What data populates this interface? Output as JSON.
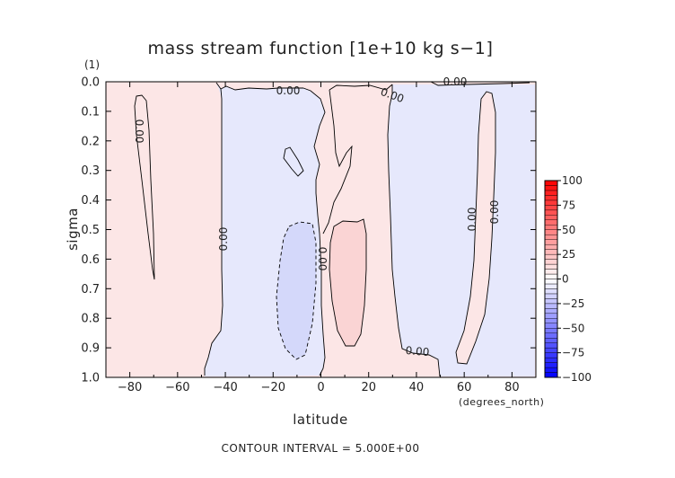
{
  "chart_data": {
    "type": "heatmap",
    "title": "mass stream function [1e+10 kg s−1]",
    "xlabel": "latitude",
    "x_units": "(degrees_north)",
    "ylabel": "sigma",
    "y_units": "(1)",
    "xlim": [
      -90,
      90
    ],
    "ylim": [
      0.0,
      1.0
    ],
    "x_ticks": [
      -80,
      -60,
      -40,
      -20,
      0,
      20,
      40,
      60,
      80
    ],
    "x_tick_labels": [
      "−80",
      "−60",
      "−40",
      "−20",
      "0",
      "20",
      "40",
      "60",
      "80"
    ],
    "y_ticks": [
      0.0,
      0.1,
      0.2,
      0.3,
      0.4,
      0.5,
      0.6,
      0.7,
      0.8,
      0.9,
      1.0
    ],
    "y_tick_labels": [
      "0.0",
      "0.1",
      "0.2",
      "0.3",
      "0.4",
      "0.5",
      "0.6",
      "0.7",
      "0.8",
      "0.9",
      "1.0"
    ],
    "colorbar": {
      "levels": [
        -100,
        -75,
        -50,
        -25,
        0,
        25,
        50,
        75,
        100
      ],
      "labels": [
        "−100",
        "−75",
        "−50",
        "−25",
        "0",
        "25",
        "50",
        "75",
        "100"
      ],
      "min_color": "#0000ff",
      "mid_color": "#ffffff",
      "max_color": "#ff0000"
    },
    "contour_label": "0.00",
    "footer": "CONTOUR INTERVAL = 5.000E+00",
    "regions": [
      {
        "name": "sh-positive",
        "sign": "positive",
        "lat_range": [
          -90,
          -48
        ],
        "fill": "#fce6e6"
      },
      {
        "name": "sh-negative",
        "sign": "negative",
        "lat_range": [
          -48,
          0
        ],
        "fill": "#e6e8fc"
      },
      {
        "name": "tropical-positive",
        "sign": "positive",
        "lat_range": [
          0,
          30
        ],
        "fill": "#fce6e6"
      },
      {
        "name": "nh-negative",
        "sign": "negative",
        "lat_range": [
          30,
          90
        ],
        "fill": "#e6e8fc"
      },
      {
        "name": "high-lat-positive",
        "sign": "positive",
        "lat_range": [
          60,
          80
        ],
        "fill": "#fce6e6"
      },
      {
        "name": "narrow-positive-cell",
        "sign": "positive",
        "lat_range": [
          -78,
          -68
        ],
        "fill": "#fce6e6"
      },
      {
        "name": "tropical-negative-cell",
        "sign": "negative",
        "lat_range": [
          -22,
          -3
        ],
        "value": -5,
        "fill": "#d4d8fa"
      },
      {
        "name": "tropical-positive-cell",
        "sign": "positive",
        "lat_range": [
          3,
          22
        ],
        "value": 5,
        "fill": "#fad4d4"
      }
    ]
  }
}
